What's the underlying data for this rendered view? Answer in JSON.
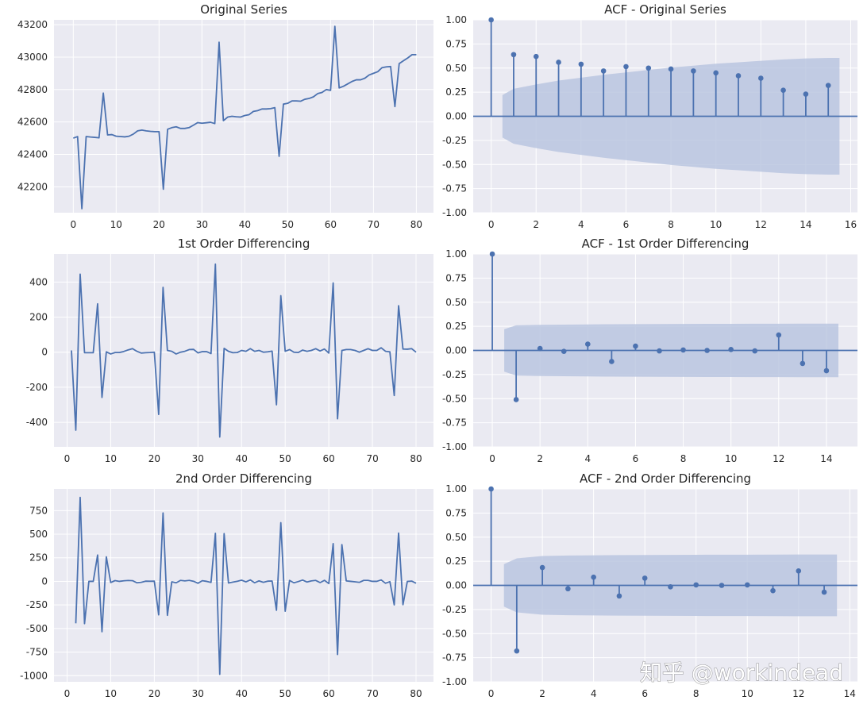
{
  "colors": {
    "background": "#eaeaf2",
    "grid": "#ffffff",
    "line": "#4c72b0",
    "band": "#b6c3de"
  },
  "watermark": "知乎 @workindead",
  "chart_data": [
    {
      "id": "orig",
      "type": "line",
      "title": "Original Series",
      "x_start": 0,
      "values": [
        42500,
        42510,
        42065,
        42510,
        42507,
        42505,
        42502,
        42778,
        42520,
        42522,
        42512,
        42510,
        42508,
        42512,
        42525,
        42545,
        42550,
        42545,
        42542,
        42540,
        42540,
        42185,
        42555,
        42565,
        42570,
        42560,
        42560,
        42565,
        42580,
        42596,
        42592,
        42595,
        42598,
        42590,
        43092,
        42608,
        42630,
        42635,
        42632,
        42630,
        42640,
        42645,
        42665,
        42670,
        42680,
        42680,
        42682,
        42688,
        42388,
        42710,
        42715,
        42730,
        42730,
        42728,
        42740,
        42745,
        42755,
        42775,
        42782,
        42800,
        42795,
        43190,
        42810,
        42820,
        42835,
        42850,
        42860,
        42860,
        42870,
        42890,
        42900,
        42910,
        42935,
        42940,
        42942,
        42695,
        42960,
        42978,
        42995,
        43015,
        43015
      ],
      "xlim": [
        -4.5,
        84
      ],
      "ylim": [
        42040,
        43230
      ],
      "xticks": [
        0,
        10,
        20,
        30,
        40,
        50,
        60,
        70,
        80
      ],
      "yticks": [
        42200,
        42400,
        42600,
        42800,
        43000,
        43200
      ]
    },
    {
      "id": "acf0",
      "type": "acf",
      "title": "ACF - Original Series",
      "values": [
        1.0,
        0.64,
        0.62,
        0.56,
        0.54,
        0.47,
        0.515,
        0.5,
        0.49,
        0.47,
        0.45,
        0.42,
        0.395,
        0.27,
        0.23,
        0.32
      ],
      "conf": [
        0.22,
        0.285,
        0.33,
        0.37,
        0.4,
        0.43,
        0.455,
        0.48,
        0.505,
        0.525,
        0.545,
        0.56,
        0.575,
        0.59,
        0.6,
        0.605
      ],
      "xlim": [
        -0.8,
        16.3
      ],
      "ylim": [
        -1.0,
        1.0
      ],
      "xticks": [
        0,
        2,
        4,
        6,
        8,
        10,
        12,
        14,
        16
      ],
      "yticks": [
        -1.0,
        -0.75,
        -0.5,
        -0.25,
        0.0,
        0.25,
        0.5,
        0.75,
        1.0
      ]
    },
    {
      "id": "diff1",
      "type": "line",
      "title": "1st Order Differencing",
      "x_start": 1,
      "values": [
        10,
        -445,
        445,
        -3,
        -3,
        -3,
        276,
        -258,
        2,
        -10,
        -2,
        -2,
        4,
        13,
        20,
        5,
        -5,
        -3,
        -2,
        0,
        -355,
        370,
        10,
        5,
        -10,
        0,
        5,
        15,
        16,
        -4,
        3,
        3,
        -8,
        502,
        -484,
        22,
        5,
        -3,
        -2,
        10,
        5,
        20,
        5,
        10,
        0,
        2,
        6,
        -300,
        322,
        5,
        15,
        0,
        -2,
        12,
        5,
        10,
        20,
        7,
        18,
        -5,
        395,
        -380,
        10,
        15,
        15,
        10,
        0,
        10,
        20,
        10,
        10,
        25,
        5,
        2,
        -247,
        265,
        18,
        17,
        20,
        0
      ],
      "xlim": [
        -3,
        84
      ],
      "ylim": [
        -540,
        560
      ],
      "xticks": [
        0,
        10,
        20,
        30,
        40,
        50,
        60,
        70,
        80
      ],
      "yticks": [
        -400,
        -200,
        0,
        200,
        400
      ]
    },
    {
      "id": "acf1",
      "type": "acf",
      "title": "ACF - 1st Order Differencing",
      "values": [
        1.0,
        -0.51,
        0.02,
        -0.01,
        0.065,
        -0.115,
        0.045,
        -0.005,
        0.005,
        0.0,
        0.01,
        -0.005,
        0.16,
        -0.135,
        -0.21
      ],
      "conf": [
        0.22,
        0.26,
        0.265,
        0.268,
        0.27,
        0.272,
        0.273,
        0.274,
        0.275,
        0.276,
        0.276,
        0.277,
        0.277,
        0.278,
        0.278
      ],
      "xlim": [
        -0.8,
        15.3
      ],
      "ylim": [
        -1.0,
        1.0
      ],
      "xticks": [
        0,
        2,
        4,
        6,
        8,
        10,
        12,
        14
      ],
      "yticks": [
        -1.0,
        -0.75,
        -0.5,
        -0.25,
        0.0,
        0.25,
        0.5,
        0.75,
        1.0
      ]
    },
    {
      "id": "diff2",
      "type": "line",
      "title": "2nd Order Differencing",
      "x_start": 2,
      "values": [
        -445,
        890,
        -448,
        0,
        0,
        279,
        -534,
        260,
        -12,
        8,
        0,
        6,
        9,
        7,
        -15,
        -10,
        2,
        1,
        2,
        -355,
        725,
        -360,
        -5,
        -15,
        10,
        5,
        10,
        1,
        -20,
        7,
        0,
        -11,
        510,
        -986,
        506,
        -17,
        -8,
        1,
        12,
        -5,
        15,
        -15,
        5,
        -10,
        2,
        4,
        -306,
        622,
        -317,
        10,
        -15,
        -2,
        14,
        -7,
        5,
        10,
        -13,
        11,
        -23,
        400,
        -775,
        390,
        5,
        0,
        -5,
        -10,
        10,
        10,
        0,
        0,
        15,
        -20,
        -3,
        -249,
        512,
        -247,
        -1,
        3,
        -20
      ],
      "xlim": [
        -3,
        84
      ],
      "ylim": [
        -1065,
        980
      ],
      "xticks": [
        0,
        10,
        20,
        30,
        40,
        50,
        60,
        70,
        80
      ],
      "yticks": [
        -1000,
        -750,
        -500,
        -250,
        0,
        250,
        500,
        750
      ]
    },
    {
      "id": "acf2",
      "type": "acf",
      "title": "ACF - 2nd Order Differencing",
      "values": [
        1.0,
        -0.68,
        0.185,
        -0.035,
        0.085,
        -0.11,
        0.075,
        -0.015,
        0.005,
        0.0,
        0.005,
        -0.055,
        0.15,
        -0.07
      ],
      "conf": [
        0.22,
        0.28,
        0.305,
        0.31,
        0.312,
        0.314,
        0.315,
        0.316,
        0.317,
        0.318,
        0.318,
        0.319,
        0.32,
        0.32
      ],
      "xlim": [
        -0.7,
        14.3
      ],
      "ylim": [
        -1.0,
        1.0
      ],
      "xticks": [
        0,
        2,
        4,
        6,
        8,
        10,
        12,
        14
      ],
      "yticks": [
        -1.0,
        -0.75,
        -0.5,
        -0.25,
        0.0,
        0.25,
        0.5,
        0.75,
        1.0
      ]
    }
  ]
}
